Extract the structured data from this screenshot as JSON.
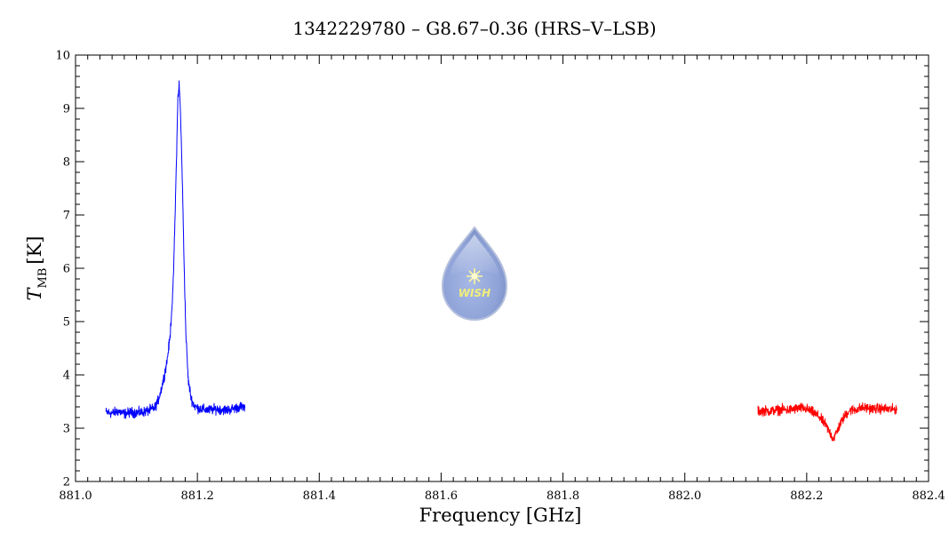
{
  "chart_data": {
    "type": "line",
    "title": "1342229780 – G8.67–0.36 (HRS–V–LSB)",
    "xlabel": "Frequency [GHz]",
    "ylabel_main": "T",
    "ylabel_sub": "MB",
    "ylabel_unit": "[K]",
    "xlim": [
      881.0,
      882.4
    ],
    "ylim": [
      2,
      10
    ],
    "x_ticks": [
      881.0,
      881.2,
      881.4,
      881.6,
      881.8,
      882.0,
      882.2,
      882.4
    ],
    "x_tick_labels": [
      "881.0",
      "881.2",
      "881.4",
      "881.6",
      "881.8",
      "882.0",
      "882.2",
      "882.4"
    ],
    "y_ticks": [
      2,
      3,
      4,
      5,
      6,
      7,
      8,
      9,
      10
    ],
    "y_tick_labels": [
      "2",
      "3",
      "4",
      "5",
      "6",
      "7",
      "8",
      "9",
      "10"
    ],
    "grid": false,
    "logo_text": "WISH",
    "series": [
      {
        "color": "#0000ff",
        "x": [
          881.05,
          881.06,
          881.07,
          881.08,
          881.09,
          881.1,
          881.11,
          881.12,
          881.13,
          881.135,
          881.14,
          881.145,
          881.15,
          881.155,
          881.16,
          881.163,
          881.166,
          881.168,
          881.17,
          881.172,
          881.175,
          881.178,
          881.181,
          881.185,
          881.19,
          881.195,
          881.2,
          881.21,
          881.22,
          881.23,
          881.24,
          881.25,
          881.26,
          881.27,
          881.278
        ],
        "y": [
          3.3,
          3.28,
          3.32,
          3.27,
          3.3,
          3.29,
          3.3,
          3.33,
          3.38,
          3.5,
          3.7,
          3.95,
          4.25,
          4.7,
          5.6,
          6.8,
          8.2,
          9.2,
          9.45,
          9.0,
          7.8,
          6.2,
          4.8,
          3.9,
          3.55,
          3.42,
          3.38,
          3.35,
          3.34,
          3.36,
          3.35,
          3.34,
          3.37,
          3.4,
          3.38
        ]
      },
      {
        "color": "#ff0000",
        "x": [
          882.12,
          882.13,
          882.14,
          882.15,
          882.16,
          882.17,
          882.18,
          882.19,
          882.2,
          882.21,
          882.22,
          882.225,
          882.23,
          882.235,
          882.24,
          882.243,
          882.246,
          882.25,
          882.255,
          882.26,
          882.265,
          882.27,
          882.28,
          882.29,
          882.3,
          882.31,
          882.32,
          882.33,
          882.34,
          882.348
        ],
        "y": [
          3.32,
          3.33,
          3.32,
          3.34,
          3.35,
          3.34,
          3.36,
          3.38,
          3.36,
          3.3,
          3.22,
          3.15,
          3.08,
          2.98,
          2.88,
          2.8,
          2.85,
          2.95,
          3.08,
          3.18,
          3.27,
          3.33,
          3.35,
          3.38,
          3.38,
          3.36,
          3.37,
          3.36,
          3.35,
          3.36
        ]
      }
    ]
  }
}
